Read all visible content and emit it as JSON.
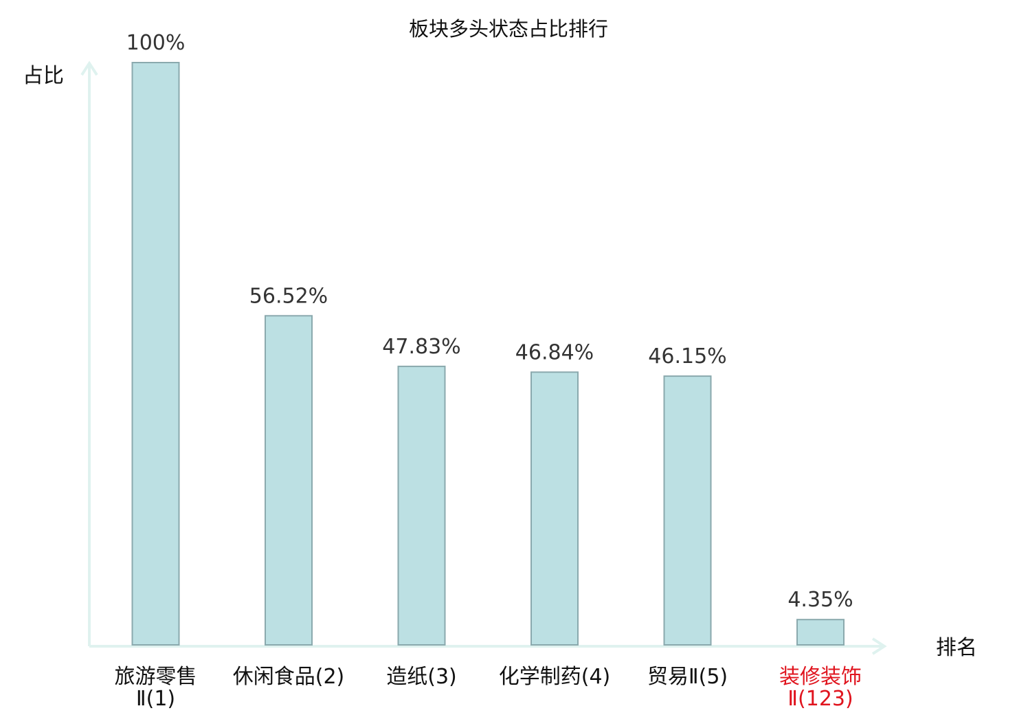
{
  "colors": {
    "bar_fill": "#bce0e3",
    "bar_stroke": "#8aa9ad",
    "axis": "#dff2ef",
    "highlight_text": "#e0141e"
  },
  "chart_data": {
    "type": "bar",
    "title": "板块多头状态占比排行",
    "ylabel": "占比",
    "xlabel": "排名",
    "grid": false,
    "ylim": [
      0,
      100
    ],
    "categories": [
      {
        "lines": [
          "旅游零售",
          "Ⅱ(1)"
        ],
        "highlight": false
      },
      {
        "lines": [
          "休闲食品(2)"
        ],
        "highlight": false
      },
      {
        "lines": [
          "造纸(3)"
        ],
        "highlight": false
      },
      {
        "lines": [
          "化学制药(4)"
        ],
        "highlight": false
      },
      {
        "lines": [
          "贸易Ⅱ(5)"
        ],
        "highlight": false
      },
      {
        "lines": [
          "装修装饰",
          "Ⅱ(123)"
        ],
        "highlight": true
      }
    ],
    "values": [
      100,
      56.52,
      47.83,
      46.84,
      46.15,
      4.35
    ],
    "value_labels": [
      "100%",
      "56.52%",
      "47.83%",
      "46.84%",
      "46.15%",
      "4.35%"
    ]
  }
}
